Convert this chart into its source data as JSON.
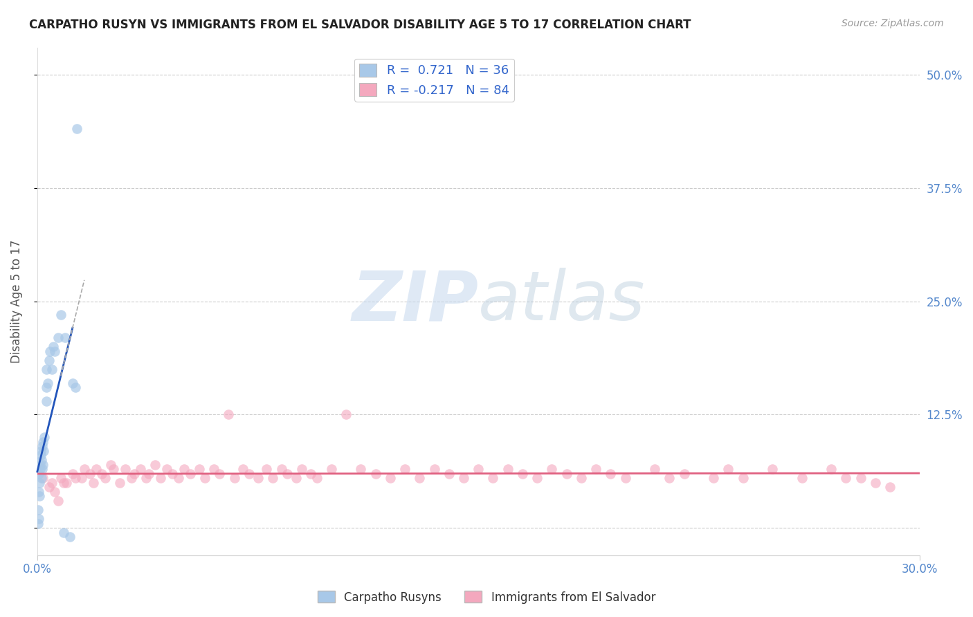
{
  "title": "CARPATHO RUSYN VS IMMIGRANTS FROM EL SALVADOR DISABILITY AGE 5 TO 17 CORRELATION CHART",
  "source": "Source: ZipAtlas.com",
  "ylabel": "Disability Age 5 to 17",
  "ytick_values": [
    0.0,
    0.125,
    0.25,
    0.375,
    0.5
  ],
  "ytick_labels": [
    "",
    "12.5%",
    "25.0%",
    "37.5%",
    "50.0%"
  ],
  "xlim": [
    0.0,
    0.3
  ],
  "ylim": [
    -0.03,
    0.53
  ],
  "blue_color": "#a8c8e8",
  "pink_color": "#f4a8be",
  "blue_line_color": "#2255bb",
  "pink_line_color": "#e06080",
  "gray_dash_color": "#aaaaaa",
  "watermark_color": "#ccddf0",
  "blue_x": [
    0.0002,
    0.0003,
    0.0004,
    0.0005,
    0.0006,
    0.0007,
    0.0008,
    0.001,
    0.001,
    0.0012,
    0.0013,
    0.0014,
    0.0015,
    0.0016,
    0.0018,
    0.002,
    0.002,
    0.0022,
    0.0025,
    0.003,
    0.003,
    0.0032,
    0.0035,
    0.004,
    0.0042,
    0.005,
    0.0055,
    0.006,
    0.007,
    0.008,
    0.009,
    0.0095,
    0.011,
    0.012,
    0.013,
    0.0135
  ],
  "blue_y": [
    0.005,
    0.02,
    0.01,
    0.04,
    0.06,
    0.035,
    0.05,
    0.065,
    0.07,
    0.08,
    0.085,
    0.055,
    0.075,
    0.09,
    0.065,
    0.07,
    0.095,
    0.085,
    0.1,
    0.155,
    0.14,
    0.175,
    0.16,
    0.185,
    0.195,
    0.175,
    0.2,
    0.195,
    0.21,
    0.235,
    -0.005,
    0.21,
    -0.01,
    0.16,
    0.155,
    0.44
  ],
  "pink_x": [
    0.002,
    0.004,
    0.005,
    0.006,
    0.007,
    0.008,
    0.009,
    0.01,
    0.012,
    0.013,
    0.015,
    0.016,
    0.018,
    0.019,
    0.02,
    0.022,
    0.023,
    0.025,
    0.026,
    0.028,
    0.03,
    0.032,
    0.033,
    0.035,
    0.037,
    0.038,
    0.04,
    0.042,
    0.044,
    0.046,
    0.048,
    0.05,
    0.052,
    0.055,
    0.057,
    0.06,
    0.062,
    0.065,
    0.067,
    0.07,
    0.072,
    0.075,
    0.078,
    0.08,
    0.083,
    0.085,
    0.088,
    0.09,
    0.093,
    0.095,
    0.1,
    0.105,
    0.11,
    0.115,
    0.12,
    0.125,
    0.13,
    0.135,
    0.14,
    0.145,
    0.15,
    0.155,
    0.16,
    0.165,
    0.17,
    0.175,
    0.18,
    0.185,
    0.19,
    0.195,
    0.2,
    0.21,
    0.215,
    0.22,
    0.23,
    0.235,
    0.24,
    0.25,
    0.26,
    0.27,
    0.275,
    0.28,
    0.285,
    0.29
  ],
  "pink_y": [
    0.055,
    0.045,
    0.05,
    0.04,
    0.03,
    0.055,
    0.05,
    0.05,
    0.06,
    0.055,
    0.055,
    0.065,
    0.06,
    0.05,
    0.065,
    0.06,
    0.055,
    0.07,
    0.065,
    0.05,
    0.065,
    0.055,
    0.06,
    0.065,
    0.055,
    0.06,
    0.07,
    0.055,
    0.065,
    0.06,
    0.055,
    0.065,
    0.06,
    0.065,
    0.055,
    0.065,
    0.06,
    0.125,
    0.055,
    0.065,
    0.06,
    0.055,
    0.065,
    0.055,
    0.065,
    0.06,
    0.055,
    0.065,
    0.06,
    0.055,
    0.065,
    0.125,
    0.065,
    0.06,
    0.055,
    0.065,
    0.055,
    0.065,
    0.06,
    0.055,
    0.065,
    0.055,
    0.065,
    0.06,
    0.055,
    0.065,
    0.06,
    0.055,
    0.065,
    0.06,
    0.055,
    0.065,
    0.055,
    0.06,
    0.055,
    0.065,
    0.055,
    0.065,
    0.055,
    0.065,
    0.055,
    0.055,
    0.05,
    0.045
  ]
}
